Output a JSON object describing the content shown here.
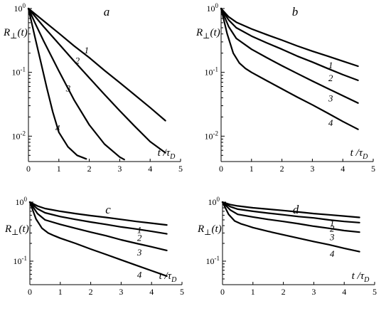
{
  "chart_data": [
    {
      "type": "line",
      "panel": "a",
      "ylabel": "R⊥(t)",
      "xlabel": "t /τD",
      "xlim": [
        0,
        5
      ],
      "ylim": [
        0.004,
        1
      ],
      "yscale": "log",
      "yticks": [
        1,
        0.1,
        0.01
      ],
      "xticks": [
        0,
        1,
        2,
        3,
        4,
        5
      ],
      "series": [
        {
          "name": "1",
          "x": [
            0,
            0.5,
            1,
            1.5,
            2,
            2.5,
            3,
            3.5,
            4,
            4.5
          ],
          "y": [
            1,
            0.64,
            0.41,
            0.26,
            0.17,
            0.107,
            0.069,
            0.044,
            0.028,
            0.0175
          ]
        },
        {
          "name": "2",
          "x": [
            0,
            0.5,
            1,
            1.5,
            2,
            2.5,
            3,
            3.5,
            4,
            4.5
          ],
          "y": [
            1,
            0.52,
            0.28,
            0.15,
            0.082,
            0.045,
            0.025,
            0.0142,
            0.0082,
            0.0055
          ]
        },
        {
          "name": "3",
          "x": [
            0,
            0.25,
            0.5,
            1,
            1.5,
            2,
            2.5,
            3,
            3.15
          ],
          "y": [
            1,
            0.55,
            0.31,
            0.105,
            0.037,
            0.015,
            0.0075,
            0.0047,
            0.0043
          ]
        },
        {
          "name": "4",
          "x": [
            0,
            0.2,
            0.4,
            0.6,
            0.8,
            1,
            1.3,
            1.6,
            1.9
          ],
          "y": [
            1,
            0.38,
            0.15,
            0.058,
            0.024,
            0.0115,
            0.0068,
            0.005,
            0.0044
          ]
        }
      ]
    },
    {
      "type": "line",
      "panel": "b",
      "ylabel": "R⊥(t)",
      "xlabel": "t /τD",
      "xlim": [
        0,
        5
      ],
      "ylim": [
        0.004,
        1
      ],
      "yscale": "log",
      "yticks": [
        1,
        0.1,
        0.01
      ],
      "xticks": [
        0,
        1,
        2,
        3,
        4,
        5
      ],
      "series": [
        {
          "name": "1",
          "x": [
            0,
            0.25,
            0.5,
            1,
            1.5,
            2,
            2.5,
            3,
            3.5,
            4,
            4.5
          ],
          "y": [
            1,
            0.74,
            0.61,
            0.48,
            0.39,
            0.32,
            0.26,
            0.215,
            0.18,
            0.15,
            0.125
          ]
        },
        {
          "name": "2",
          "x": [
            0,
            0.25,
            0.5,
            1,
            1.5,
            2,
            2.5,
            3,
            3.5,
            4,
            4.5
          ],
          "y": [
            1,
            0.66,
            0.5,
            0.37,
            0.29,
            0.23,
            0.18,
            0.145,
            0.115,
            0.092,
            0.075
          ]
        },
        {
          "name": "3",
          "x": [
            0,
            0.25,
            0.5,
            1,
            1.5,
            2,
            2.5,
            3,
            3.5,
            4,
            4.5
          ],
          "y": [
            1,
            0.52,
            0.34,
            0.23,
            0.17,
            0.127,
            0.096,
            0.073,
            0.056,
            0.043,
            0.033
          ]
        },
        {
          "name": "4",
          "x": [
            0,
            0.2,
            0.4,
            0.6,
            0.8,
            1,
            1.5,
            2,
            2.5,
            3,
            3.5,
            4,
            4.5
          ],
          "y": [
            1,
            0.4,
            0.2,
            0.14,
            0.115,
            0.1,
            0.074,
            0.055,
            0.041,
            0.031,
            0.023,
            0.017,
            0.0128
          ]
        }
      ]
    },
    {
      "type": "line",
      "panel": "c",
      "ylabel": "R⊥(t)",
      "xlabel": "t /τD",
      "xlim": [
        0,
        5
      ],
      "ylim": [
        0.04,
        1
      ],
      "yscale": "log",
      "yticks": [
        1,
        0.1
      ],
      "xticks": [
        0,
        1,
        2,
        3,
        4,
        5
      ],
      "series": [
        {
          "name": "1",
          "x": [
            0,
            0.25,
            0.5,
            1,
            1.5,
            2,
            2.5,
            3,
            3.5,
            4,
            4.5
          ],
          "y": [
            1,
            0.86,
            0.78,
            0.7,
            0.64,
            0.59,
            0.55,
            0.51,
            0.47,
            0.44,
            0.41
          ]
        },
        {
          "name": "2",
          "x": [
            0,
            0.25,
            0.5,
            1,
            1.5,
            2,
            2.5,
            3,
            3.5,
            4,
            4.5
          ],
          "y": [
            1,
            0.77,
            0.66,
            0.57,
            0.51,
            0.46,
            0.42,
            0.38,
            0.35,
            0.32,
            0.29
          ]
        },
        {
          "name": "3",
          "x": [
            0,
            0.25,
            0.5,
            1,
            1.5,
            2,
            2.5,
            3,
            3.5,
            4,
            4.5
          ],
          "y": [
            1,
            0.64,
            0.5,
            0.42,
            0.36,
            0.31,
            0.27,
            0.23,
            0.2,
            0.175,
            0.152
          ]
        },
        {
          "name": "4",
          "x": [
            0,
            0.2,
            0.4,
            0.6,
            0.8,
            1,
            1.5,
            2,
            2.5,
            3,
            3.5,
            4,
            4.5
          ],
          "y": [
            1,
            0.52,
            0.36,
            0.3,
            0.27,
            0.245,
            0.2,
            0.16,
            0.13,
            0.105,
            0.085,
            0.069,
            0.056
          ]
        }
      ]
    },
    {
      "type": "line",
      "panel": "d",
      "ylabel": "R⊥(t)",
      "xlabel": "t /τD",
      "xlim": [
        0,
        5
      ],
      "ylim": [
        0.04,
        1
      ],
      "yscale": "log",
      "yticks": [
        1,
        0.1
      ],
      "xticks": [
        0,
        1,
        2,
        3,
        4,
        5
      ],
      "series": [
        {
          "name": "1",
          "x": [
            0,
            0.25,
            0.5,
            1,
            1.5,
            2,
            2.5,
            3,
            3.5,
            4,
            4.5
          ],
          "y": [
            1,
            0.91,
            0.86,
            0.8,
            0.76,
            0.72,
            0.68,
            0.64,
            0.61,
            0.58,
            0.55
          ]
        },
        {
          "name": "2",
          "x": [
            0,
            0.25,
            0.5,
            1,
            1.5,
            2,
            2.5,
            3,
            3.5,
            4,
            4.5
          ],
          "y": [
            1,
            0.84,
            0.76,
            0.7,
            0.65,
            0.61,
            0.57,
            0.54,
            0.5,
            0.47,
            0.45
          ]
        },
        {
          "name": "3",
          "x": [
            0,
            0.25,
            0.5,
            1,
            1.5,
            2,
            2.5,
            3,
            3.5,
            4,
            4.5
          ],
          "y": [
            1,
            0.74,
            0.62,
            0.56,
            0.51,
            0.47,
            0.43,
            0.39,
            0.36,
            0.33,
            0.31
          ]
        },
        {
          "name": "4",
          "x": [
            0,
            0.2,
            0.4,
            0.6,
            0.8,
            1,
            1.5,
            2,
            2.5,
            3,
            3.5,
            4,
            4.5
          ],
          "y": [
            1,
            0.62,
            0.48,
            0.43,
            0.4,
            0.37,
            0.32,
            0.28,
            0.245,
            0.215,
            0.19,
            0.165,
            0.145
          ]
        }
      ]
    }
  ]
}
